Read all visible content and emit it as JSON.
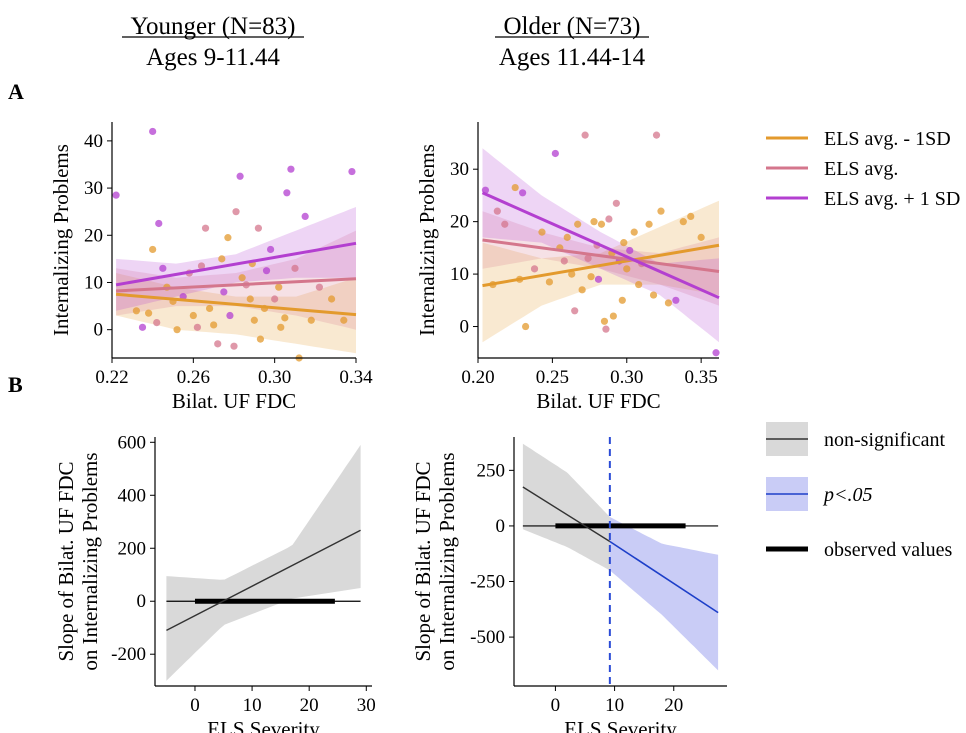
{
  "headers": {
    "younger": {
      "title": "Younger (N=83)",
      "subtitle": "Ages 9-11.44"
    },
    "older": {
      "title": "Older (N=73)",
      "subtitle": "Ages 11.44-14"
    }
  },
  "panel_labels": {
    "a": "A",
    "b": "B"
  },
  "colors": {
    "els_minus": "#e39a2d",
    "els_avg": "#d4768c",
    "els_plus": "#b33fd0",
    "nonsig_line": "#333333",
    "nonsig_band": "#d9d9d9",
    "sig_line": "#1d3fc9",
    "sig_band": "#c9ccf6",
    "threshold": "#2b4bd6"
  },
  "legend_top": [
    {
      "label": "ELS avg. - 1SD",
      "color_key": "els_minus"
    },
    {
      "label": "ELS avg.",
      "color_key": "els_avg"
    },
    {
      "label": "ELS avg. + 1 SD",
      "color_key": "els_plus"
    }
  ],
  "legend_bottom": [
    {
      "label": "non-significant",
      "kind": "nonsig",
      "italic": false
    },
    {
      "label": "p<.05",
      "kind": "sig",
      "italic": true
    },
    {
      "label": "observed values",
      "kind": "observed",
      "italic": false
    }
  ],
  "chart_data": [
    {
      "id": "A_younger",
      "type": "scatter",
      "xlabel": "Bilat. UF FDC",
      "ylabel": "Internalizing Problems",
      "xlim": [
        0.22,
        0.34
      ],
      "ylim": [
        -6,
        44
      ],
      "xticks": [
        0.22,
        0.26,
        0.3,
        0.34
      ],
      "xtick_labels": [
        "0.22",
        "0.26",
        "0.30",
        "0.34"
      ],
      "yticks": [
        0,
        10,
        20,
        30,
        40
      ],
      "series": [
        {
          "name": "ELS avg. - 1SD",
          "color_key": "els_minus",
          "line": [
            [
              0.222,
              7.5
            ],
            [
              0.34,
              3.2
            ]
          ],
          "band_lower": [
            3,
            0,
            -1,
            -3,
            -5
          ],
          "band_upper": [
            12,
            9,
            7,
            7,
            11
          ]
        },
        {
          "name": "ELS avg.",
          "color_key": "els_avg",
          "line": [
            [
              0.222,
              8.2
            ],
            [
              0.34,
              10.8
            ]
          ],
          "band_lower": [
            3,
            5,
            5,
            3,
            0
          ],
          "band_upper": [
            13,
            11,
            12,
            15,
            21
          ]
        },
        {
          "name": "ELS avg. + 1 SD",
          "color_key": "els_plus",
          "line": [
            [
              0.222,
              9.5
            ],
            [
              0.34,
              18.3
            ]
          ],
          "band_lower": [
            4,
            7,
            10,
            11,
            11
          ],
          "band_upper": [
            15,
            14,
            16,
            21,
            26
          ]
        }
      ],
      "points": [
        {
          "x": 0.222,
          "y": 28.5,
          "c": "els_plus"
        },
        {
          "x": 0.24,
          "y": 42,
          "c": "els_plus"
        },
        {
          "x": 0.232,
          "y": 4,
          "c": "els_minus"
        },
        {
          "x": 0.235,
          "y": 0.5,
          "c": "els_plus"
        },
        {
          "x": 0.238,
          "y": 3.5,
          "c": "els_minus"
        },
        {
          "x": 0.24,
          "y": 17,
          "c": "els_minus"
        },
        {
          "x": 0.242,
          "y": 1.5,
          "c": "els_avg"
        },
        {
          "x": 0.243,
          "y": 22.5,
          "c": "els_plus"
        },
        {
          "x": 0.245,
          "y": 13,
          "c": "els_plus"
        },
        {
          "x": 0.247,
          "y": 9,
          "c": "els_minus"
        },
        {
          "x": 0.25,
          "y": 6,
          "c": "els_minus"
        },
        {
          "x": 0.252,
          "y": 0,
          "c": "els_minus"
        },
        {
          "x": 0.255,
          "y": 7,
          "c": "els_plus"
        },
        {
          "x": 0.258,
          "y": 12,
          "c": "els_avg"
        },
        {
          "x": 0.26,
          "y": 3,
          "c": "els_minus"
        },
        {
          "x": 0.262,
          "y": 0.5,
          "c": "els_avg"
        },
        {
          "x": 0.264,
          "y": 13.5,
          "c": "els_avg"
        },
        {
          "x": 0.266,
          "y": 21.5,
          "c": "els_avg"
        },
        {
          "x": 0.268,
          "y": 4.5,
          "c": "els_minus"
        },
        {
          "x": 0.27,
          "y": 1,
          "c": "els_minus"
        },
        {
          "x": 0.272,
          "y": -3,
          "c": "els_avg"
        },
        {
          "x": 0.274,
          "y": 15,
          "c": "els_minus"
        },
        {
          "x": 0.275,
          "y": 8,
          "c": "els_plus"
        },
        {
          "x": 0.277,
          "y": 19.5,
          "c": "els_minus"
        },
        {
          "x": 0.278,
          "y": 3,
          "c": "els_plus"
        },
        {
          "x": 0.28,
          "y": -3.5,
          "c": "els_avg"
        },
        {
          "x": 0.281,
          "y": 25,
          "c": "els_avg"
        },
        {
          "x": 0.283,
          "y": 32.5,
          "c": "els_plus"
        },
        {
          "x": 0.284,
          "y": 11,
          "c": "els_minus"
        },
        {
          "x": 0.286,
          "y": 9.5,
          "c": "els_avg"
        },
        {
          "x": 0.288,
          "y": 6.5,
          "c": "els_minus"
        },
        {
          "x": 0.289,
          "y": 14,
          "c": "els_minus"
        },
        {
          "x": 0.29,
          "y": 2,
          "c": "els_minus"
        },
        {
          "x": 0.292,
          "y": 21.5,
          "c": "els_avg"
        },
        {
          "x": 0.293,
          "y": -2,
          "c": "els_minus"
        },
        {
          "x": 0.295,
          "y": 4.5,
          "c": "els_minus"
        },
        {
          "x": 0.296,
          "y": 12.5,
          "c": "els_plus"
        },
        {
          "x": 0.298,
          "y": 17,
          "c": "els_plus"
        },
        {
          "x": 0.3,
          "y": 6.5,
          "c": "els_avg"
        },
        {
          "x": 0.302,
          "y": 9,
          "c": "els_minus"
        },
        {
          "x": 0.303,
          "y": 0.5,
          "c": "els_minus"
        },
        {
          "x": 0.305,
          "y": 2.5,
          "c": "els_minus"
        },
        {
          "x": 0.306,
          "y": 29,
          "c": "els_plus"
        },
        {
          "x": 0.308,
          "y": 34,
          "c": "els_plus"
        },
        {
          "x": 0.31,
          "y": 13,
          "c": "els_avg"
        },
        {
          "x": 0.312,
          "y": -6,
          "c": "els_minus"
        },
        {
          "x": 0.315,
          "y": 24,
          "c": "els_plus"
        },
        {
          "x": 0.318,
          "y": 2,
          "c": "els_minus"
        },
        {
          "x": 0.322,
          "y": 9,
          "c": "els_avg"
        },
        {
          "x": 0.328,
          "y": 6.5,
          "c": "els_minus"
        },
        {
          "x": 0.334,
          "y": 2,
          "c": "els_minus"
        },
        {
          "x": 0.338,
          "y": 33.5,
          "c": "els_plus"
        }
      ]
    },
    {
      "id": "A_older",
      "type": "scatter",
      "xlabel": "Bilat. UF FDC",
      "ylabel": "Internalizing Problems",
      "xlim": [
        0.2,
        0.362
      ],
      "ylim": [
        -6,
        39
      ],
      "xticks": [
        0.2,
        0.25,
        0.3,
        0.35
      ],
      "xtick_labels": [
        "0.20",
        "0.25",
        "0.30",
        "0.35"
      ],
      "yticks": [
        0,
        10,
        20,
        30
      ],
      "series": [
        {
          "name": "ELS avg. - 1SD",
          "color_key": "els_minus",
          "line": [
            [
              0.203,
              7.8
            ],
            [
              0.362,
              15.5
            ]
          ],
          "band_lower": [
            -3,
            4,
            8,
            8,
            6
          ],
          "band_upper": [
            16,
            13,
            14,
            19,
            24
          ]
        },
        {
          "name": "ELS avg.",
          "color_key": "els_avg",
          "line": [
            [
              0.203,
              16.5
            ],
            [
              0.362,
              10.5
            ]
          ],
          "band_lower": [
            11,
            13,
            11,
            8,
            4
          ],
          "band_upper": [
            22,
            18,
            15,
            14,
            17
          ]
        },
        {
          "name": "ELS avg. + 1 SD",
          "color_key": "els_plus",
          "line": [
            [
              0.203,
              25.5
            ],
            [
              0.362,
              5.5
            ]
          ],
          "band_lower": [
            17,
            16,
            11,
            6,
            -3
          ],
          "band_upper": [
            34,
            25,
            18,
            12,
            13
          ]
        }
      ],
      "points": [
        {
          "x": 0.205,
          "y": 26,
          "c": "els_plus"
        },
        {
          "x": 0.21,
          "y": 8,
          "c": "els_minus"
        },
        {
          "x": 0.213,
          "y": 22,
          "c": "els_avg"
        },
        {
          "x": 0.218,
          "y": 19.5,
          "c": "els_avg"
        },
        {
          "x": 0.225,
          "y": 26.5,
          "c": "els_minus"
        },
        {
          "x": 0.228,
          "y": 9,
          "c": "els_minus"
        },
        {
          "x": 0.23,
          "y": 25.5,
          "c": "els_plus"
        },
        {
          "x": 0.232,
          "y": 0,
          "c": "els_minus"
        },
        {
          "x": 0.238,
          "y": 11,
          "c": "els_avg"
        },
        {
          "x": 0.243,
          "y": 18,
          "c": "els_minus"
        },
        {
          "x": 0.248,
          "y": 8.5,
          "c": "els_minus"
        },
        {
          "x": 0.252,
          "y": 33,
          "c": "els_plus"
        },
        {
          "x": 0.255,
          "y": 15,
          "c": "els_minus"
        },
        {
          "x": 0.258,
          "y": 12.5,
          "c": "els_avg"
        },
        {
          "x": 0.26,
          "y": 17,
          "c": "els_minus"
        },
        {
          "x": 0.263,
          "y": 10,
          "c": "els_minus"
        },
        {
          "x": 0.265,
          "y": 3,
          "c": "els_avg"
        },
        {
          "x": 0.267,
          "y": 19.5,
          "c": "els_minus"
        },
        {
          "x": 0.27,
          "y": 7,
          "c": "els_minus"
        },
        {
          "x": 0.272,
          "y": 36.5,
          "c": "els_avg"
        },
        {
          "x": 0.274,
          "y": 13,
          "c": "els_avg"
        },
        {
          "x": 0.276,
          "y": 9.5,
          "c": "els_minus"
        },
        {
          "x": 0.278,
          "y": 20,
          "c": "els_minus"
        },
        {
          "x": 0.28,
          "y": 15.5,
          "c": "els_avg"
        },
        {
          "x": 0.281,
          "y": 9,
          "c": "els_plus"
        },
        {
          "x": 0.283,
          "y": 19.5,
          "c": "els_minus"
        },
        {
          "x": 0.285,
          "y": 1,
          "c": "els_minus"
        },
        {
          "x": 0.286,
          "y": -0.5,
          "c": "els_avg"
        },
        {
          "x": 0.288,
          "y": 20.5,
          "c": "els_avg"
        },
        {
          "x": 0.29,
          "y": 14,
          "c": "els_minus"
        },
        {
          "x": 0.291,
          "y": 2,
          "c": "els_minus"
        },
        {
          "x": 0.293,
          "y": 23.5,
          "c": "els_avg"
        },
        {
          "x": 0.295,
          "y": 12.5,
          "c": "els_plus"
        },
        {
          "x": 0.297,
          "y": 5,
          "c": "els_minus"
        },
        {
          "x": 0.298,
          "y": 16,
          "c": "els_minus"
        },
        {
          "x": 0.3,
          "y": 11,
          "c": "els_minus"
        },
        {
          "x": 0.302,
          "y": 14.5,
          "c": "els_plus"
        },
        {
          "x": 0.305,
          "y": 18,
          "c": "els_minus"
        },
        {
          "x": 0.308,
          "y": 8,
          "c": "els_minus"
        },
        {
          "x": 0.31,
          "y": 12,
          "c": "els_avg"
        },
        {
          "x": 0.315,
          "y": 19.5,
          "c": "els_minus"
        },
        {
          "x": 0.318,
          "y": 6,
          "c": "els_minus"
        },
        {
          "x": 0.32,
          "y": 36.5,
          "c": "els_avg"
        },
        {
          "x": 0.323,
          "y": 22,
          "c": "els_minus"
        },
        {
          "x": 0.328,
          "y": 4.5,
          "c": "els_minus"
        },
        {
          "x": 0.333,
          "y": 5,
          "c": "els_plus"
        },
        {
          "x": 0.338,
          "y": 20,
          "c": "els_minus"
        },
        {
          "x": 0.343,
          "y": 21,
          "c": "els_minus"
        },
        {
          "x": 0.35,
          "y": 17,
          "c": "els_minus"
        },
        {
          "x": 0.36,
          "y": -5,
          "c": "els_plus"
        }
      ]
    },
    {
      "id": "B_younger",
      "type": "line",
      "xlabel": "ELS Severity",
      "ylabel_line1": "Slope of Bilat. UF FDC",
      "ylabel_line2": "on Internalizing Problems",
      "xlim": [
        -7,
        31
      ],
      "ylim": [
        -320,
        620
      ],
      "xticks": [
        0,
        10,
        20,
        30
      ],
      "yticks": [
        -200,
        0,
        200,
        400,
        600
      ],
      "ytick_labels": [
        "-200",
        "0",
        "200",
        "400",
        "600"
      ],
      "zero_line": [
        -5,
        29
      ],
      "observed_range": [
        0,
        24.5
      ],
      "nonsig_segments": [
        {
          "x": [
            -5,
            29
          ],
          "y": [
            -110,
            268
          ],
          "band_lower": [
            -300,
            -90,
            10,
            50
          ],
          "band_upper": [
            95,
            80,
            210,
            590
          ],
          "band_x": [
            -5,
            5,
            17,
            29
          ]
        }
      ],
      "sig_segments": []
    },
    {
      "id": "B_older",
      "type": "line",
      "xlabel": "ELS Severity",
      "ylabel_line1": "Slope of Bilat. UF FDC",
      "ylabel_line2": "on Internalizing Problems",
      "xlim": [
        -7,
        29
      ],
      "ylim": [
        -720,
        400
      ],
      "xticks": [
        0,
        10,
        20
      ],
      "yticks": [
        -500,
        -250,
        0,
        250
      ],
      "ytick_labels": [
        "-500",
        "-250",
        "0",
        "250"
      ],
      "zero_line": [
        -5.5,
        27.5
      ],
      "observed_range": [
        0,
        22
      ],
      "threshold_x": 9.2,
      "nonsig_segments": [
        {
          "x": [
            -5.5,
            9.2
          ],
          "y": [
            175,
            -70
          ],
          "band_lower": [
            -15,
            -95,
            -200
          ],
          "band_upper": [
            370,
            240,
            40
          ],
          "band_x": [
            -5.5,
            2,
            9.2
          ]
        }
      ],
      "sig_segments": [
        {
          "x": [
            9.2,
            27.5
          ],
          "y": [
            -70,
            -390
          ],
          "band_lower": [
            -200,
            -400,
            -650
          ],
          "band_upper": [
            40,
            -80,
            -130
          ],
          "band_x": [
            9.2,
            18,
            27.5
          ]
        }
      ]
    }
  ]
}
